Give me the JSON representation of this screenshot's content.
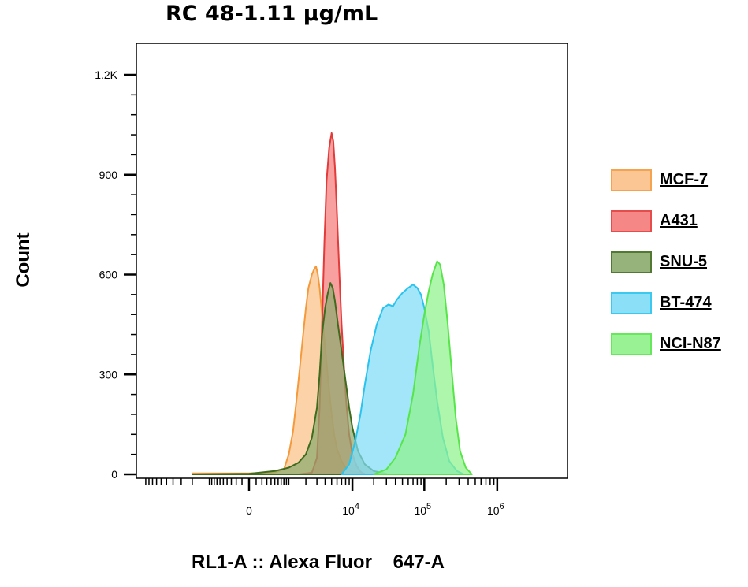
{
  "chart_data": {
    "type": "area",
    "title": "RC 48-1.11 μg/mL",
    "xlabel": "RL1-A :: Alexa Fluor    647-A",
    "ylabel": "Count",
    "ylim": [
      0,
      1250
    ],
    "y_ticks": [
      {
        "value": 0,
        "label": "0"
      },
      {
        "value": 300,
        "label": "300"
      },
      {
        "value": 600,
        "label": "600"
      },
      {
        "value": 900,
        "label": "900"
      },
      {
        "value": 1200,
        "label": "1.2K"
      }
    ],
    "x_ticks": [
      {
        "value": 0,
        "base": "0",
        "exp": ""
      },
      {
        "value": 10000,
        "base": "10",
        "exp": "4"
      },
      {
        "value": 100000,
        "base": "10",
        "exp": "5"
      },
      {
        "value": 1000000,
        "base": "10",
        "exp": "6"
      }
    ],
    "legend_position": "right",
    "series": [
      {
        "name": "MCF-7",
        "fill": "#fbc088",
        "stroke": "#f59a3c",
        "points": [
          [
            -2000,
            3
          ],
          [
            0,
            3
          ],
          [
            500,
            6
          ],
          [
            800,
            15
          ],
          [
            1000,
            60
          ],
          [
            1200,
            130
          ],
          [
            1400,
            230
          ],
          [
            1600,
            330
          ],
          [
            1800,
            420
          ],
          [
            2000,
            500
          ],
          [
            2200,
            560
          ],
          [
            2500,
            600
          ],
          [
            2700,
            615
          ],
          [
            2900,
            625
          ],
          [
            3100,
            600
          ],
          [
            3300,
            560
          ],
          [
            3600,
            480
          ],
          [
            4000,
            380
          ],
          [
            4500,
            270
          ],
          [
            5000,
            180
          ],
          [
            5500,
            115
          ],
          [
            6000,
            75
          ],
          [
            7000,
            40
          ],
          [
            8000,
            20
          ],
          [
            10000,
            8
          ],
          [
            15000,
            2
          ]
        ]
      },
      {
        "name": "A431",
        "fill": "#f57b7b",
        "stroke": "#e33a3a",
        "points": [
          [
            1500,
            0
          ],
          [
            2500,
            5
          ],
          [
            3000,
            50
          ],
          [
            3300,
            200
          ],
          [
            3600,
            450
          ],
          [
            3900,
            700
          ],
          [
            4200,
            880
          ],
          [
            4600,
            980
          ],
          [
            5000,
            1025
          ],
          [
            5300,
            1000
          ],
          [
            5600,
            920
          ],
          [
            6000,
            780
          ],
          [
            6500,
            600
          ],
          [
            7000,
            450
          ],
          [
            7600,
            320
          ],
          [
            8200,
            210
          ],
          [
            9000,
            120
          ],
          [
            10000,
            60
          ],
          [
            11500,
            25
          ],
          [
            13000,
            8
          ],
          [
            15000,
            0
          ]
        ]
      },
      {
        "name": "SNU-5",
        "fill": "#8cab6e",
        "stroke": "#3f6b1e",
        "points": [
          [
            -2000,
            0
          ],
          [
            0,
            2
          ],
          [
            500,
            10
          ],
          [
            1000,
            20
          ],
          [
            1500,
            35
          ],
          [
            2000,
            60
          ],
          [
            2500,
            110
          ],
          [
            3000,
            200
          ],
          [
            3300,
            300
          ],
          [
            3600,
            420
          ],
          [
            4000,
            500
          ],
          [
            4400,
            545
          ],
          [
            4800,
            575
          ],
          [
            5200,
            560
          ],
          [
            5600,
            520
          ],
          [
            6200,
            450
          ],
          [
            7000,
            370
          ],
          [
            8000,
            280
          ],
          [
            9000,
            200
          ],
          [
            10000,
            140
          ],
          [
            12000,
            70
          ],
          [
            15000,
            30
          ],
          [
            20000,
            10
          ],
          [
            30000,
            2
          ]
        ]
      },
      {
        "name": "BT-474",
        "fill": "#7fdcf7",
        "stroke": "#29c3ef",
        "points": [
          [
            7000,
            0
          ],
          [
            9000,
            30
          ],
          [
            11000,
            100
          ],
          [
            13000,
            180
          ],
          [
            15000,
            270
          ],
          [
            18000,
            370
          ],
          [
            22000,
            450
          ],
          [
            27000,
            500
          ],
          [
            32000,
            510
          ],
          [
            37000,
            505
          ],
          [
            42000,
            525
          ],
          [
            50000,
            545
          ],
          [
            60000,
            560
          ],
          [
            70000,
            570
          ],
          [
            80000,
            560
          ],
          [
            90000,
            540
          ],
          [
            100000,
            500
          ],
          [
            115000,
            430
          ],
          [
            130000,
            330
          ],
          [
            150000,
            220
          ],
          [
            180000,
            110
          ],
          [
            220000,
            40
          ],
          [
            280000,
            10
          ],
          [
            350000,
            0
          ]
        ]
      },
      {
        "name": "NCI-N87",
        "fill": "#8ff28a",
        "stroke": "#57e54a",
        "points": [
          [
            20000,
            0
          ],
          [
            30000,
            15
          ],
          [
            40000,
            50
          ],
          [
            55000,
            120
          ],
          [
            70000,
            240
          ],
          [
            85000,
            380
          ],
          [
            100000,
            480
          ],
          [
            115000,
            550
          ],
          [
            130000,
            600
          ],
          [
            150000,
            640
          ],
          [
            165000,
            630
          ],
          [
            185000,
            570
          ],
          [
            210000,
            450
          ],
          [
            240000,
            300
          ],
          [
            270000,
            170
          ],
          [
            310000,
            70
          ],
          [
            370000,
            20
          ],
          [
            450000,
            0
          ]
        ]
      }
    ]
  }
}
